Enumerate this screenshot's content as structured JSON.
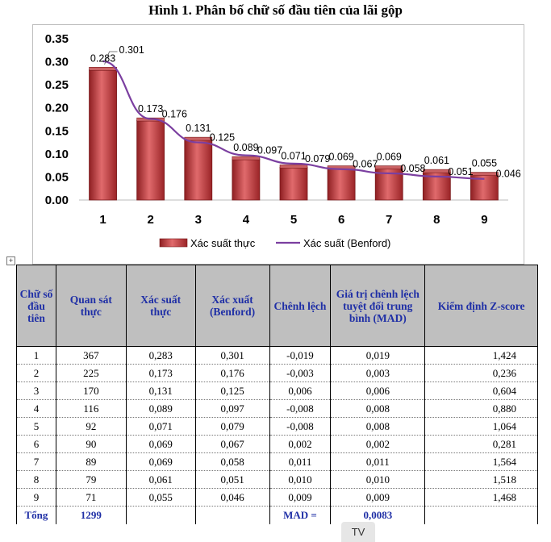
{
  "title": "Hình 1. Phân bố chữ số đầu tiên của lãi gộp",
  "chart_data": {
    "type": "bar",
    "categories": [
      "1",
      "2",
      "3",
      "4",
      "5",
      "6",
      "7",
      "8",
      "9"
    ],
    "series": [
      {
        "name": "Xác suất thực",
        "kind": "bar",
        "color": "#c0393b",
        "values": [
          0.283,
          0.173,
          0.131,
          0.089,
          0.071,
          0.069,
          0.069,
          0.061,
          0.055
        ]
      },
      {
        "name": "Xác suất (Benford)",
        "kind": "line",
        "color": "#7b3fa0",
        "values": [
          0.301,
          0.176,
          0.125,
          0.097,
          0.079,
          0.067,
          0.058,
          0.051,
          0.046
        ]
      }
    ],
    "bar_labels": [
      "0.283",
      "0.173",
      "0.131",
      "0.089",
      "0.071",
      "0.069",
      "0.069",
      "0.061",
      "0.055"
    ],
    "line_labels": [
      "0.301",
      "0.176",
      "0.125",
      "0.097",
      "0.079",
      "0.067",
      "0.058",
      "0.051",
      "0.046"
    ],
    "yticks": [
      "0.00",
      "0.05",
      "0.10",
      "0.15",
      "0.20",
      "0.25",
      "0.30",
      "0.35"
    ],
    "ylim": [
      0,
      0.35
    ],
    "legend_position": "bottom",
    "xlabel": "",
    "ylabel": ""
  },
  "table": {
    "headers": [
      "Chữ số đầu tiên",
      "Quan sát thực",
      "Xác suất thực",
      "Xác xuất (Benford)",
      "Chênh lệch",
      "Giá trị chênh lệch tuyệt đối trung bình (MAD)",
      "Kiểm định Z-score"
    ],
    "rows": [
      [
        "1",
        "367",
        "0,283",
        "0,301",
        "-0,019",
        "0,019",
        "1,424"
      ],
      [
        "2",
        "225",
        "0,173",
        "0,176",
        "-0,003",
        "0,003",
        "0,236"
      ],
      [
        "3",
        "170",
        "0,131",
        "0,125",
        "0,006",
        "0,006",
        "0,604"
      ],
      [
        "4",
        "116",
        "0,089",
        "0,097",
        "-0,008",
        "0,008",
        "0,880"
      ],
      [
        "5",
        "92",
        "0,071",
        "0,079",
        "-0,008",
        "0,008",
        "1,064"
      ],
      [
        "6",
        "90",
        "0,069",
        "0,067",
        "0,002",
        "0,002",
        "0,281"
      ],
      [
        "7",
        "89",
        "0,069",
        "0,058",
        "0,011",
        "0,011",
        "1,564"
      ],
      [
        "8",
        "79",
        "0,061",
        "0,051",
        "0,010",
        "0,010",
        "1,518"
      ],
      [
        "9",
        "71",
        "0,055",
        "0,046",
        "0,009",
        "0,009",
        "1,468"
      ]
    ],
    "total": {
      "label": "Tổng",
      "observed": "1299",
      "mad_label": "MAD =",
      "mad_value": "0,0083"
    }
  },
  "anchor_glyph": "+",
  "tv_label": "TV"
}
